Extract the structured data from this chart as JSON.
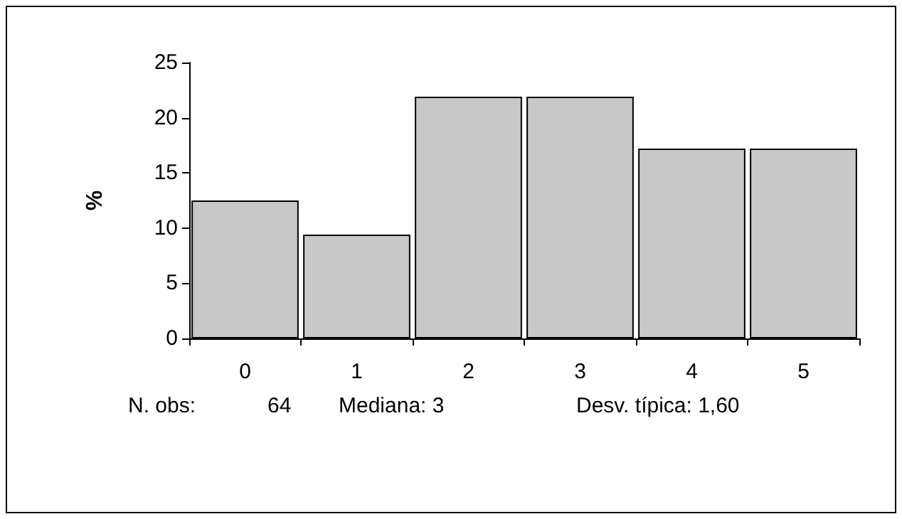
{
  "chart_data": {
    "type": "bar",
    "ylabel": "%",
    "categories": [
      "0",
      "1",
      "2",
      "3",
      "4",
      "5"
    ],
    "values": [
      12.5,
      9.4,
      21.9,
      21.9,
      17.2,
      17.2
    ],
    "color": "#c8c8c8",
    "ylim": [
      0,
      25
    ],
    "yticks": [
      0,
      5,
      10,
      15,
      20,
      25
    ],
    "grid": false,
    "annotations": [
      "N. obs:",
      "64",
      "Mediana: 3",
      "Desv. típica: 1,60"
    ]
  }
}
